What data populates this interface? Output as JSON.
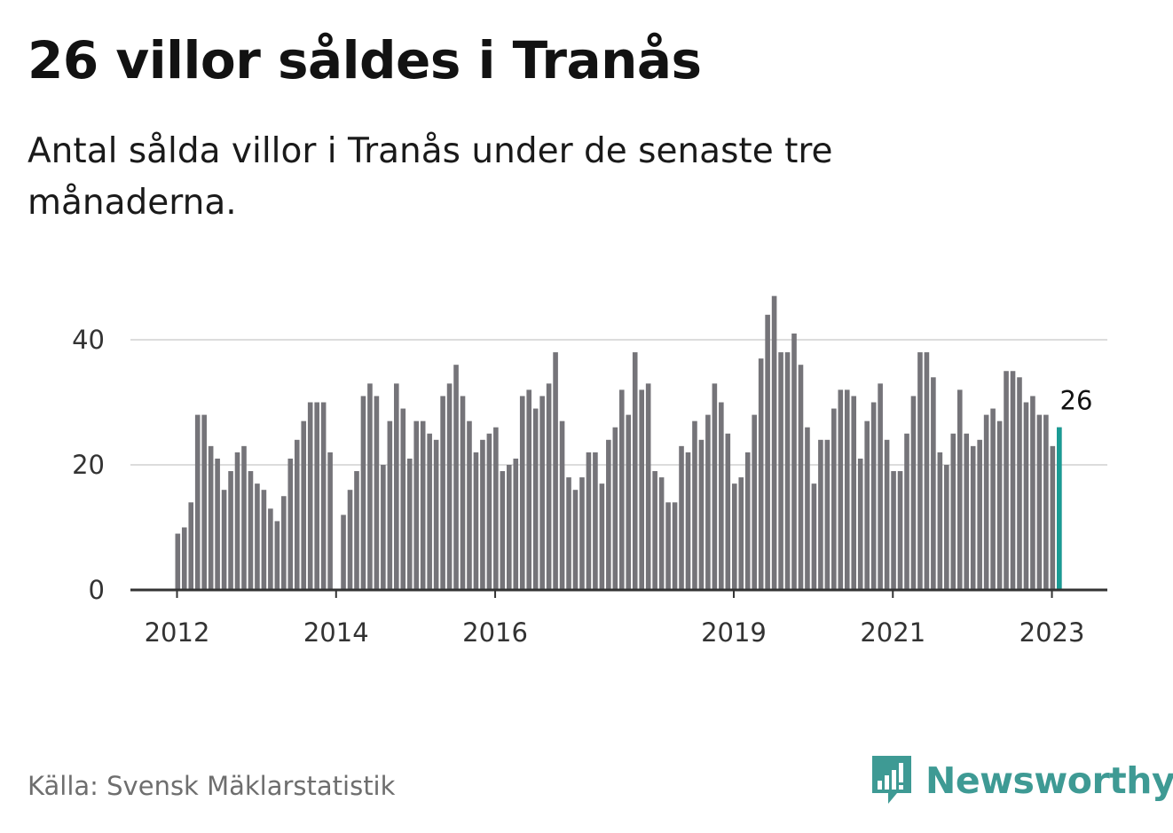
{
  "title": "26 villor såldes i Tranås",
  "subtitle": "Antal sålda villor i Tranås under de senaste tre månaderna.",
  "source": "Källa: Svensk Mäklarstatistik",
  "brand": "Newsworthy",
  "colors": {
    "bar": "#757479",
    "highlight": "#1a9b94",
    "grid": "#dcdcdc",
    "axis": "#333333",
    "brand": "#3e9a94"
  },
  "chart_data": {
    "type": "bar",
    "ylim": [
      0,
      48
    ],
    "yticks": [
      0,
      20,
      40
    ],
    "xticks": [
      {
        "label": "2012",
        "index": 0
      },
      {
        "label": "2014",
        "index": 24
      },
      {
        "label": "2016",
        "index": 48
      },
      {
        "label": "2019",
        "index": 84
      },
      {
        "label": "2021",
        "index": 108
      },
      {
        "label": "2023",
        "index": 132
      }
    ],
    "values": [
      9,
      10,
      14,
      28,
      28,
      23,
      21,
      16,
      19,
      22,
      23,
      19,
      17,
      16,
      13,
      11,
      15,
      21,
      24,
      27,
      30,
      30,
      30,
      22,
      null,
      12,
      16,
      19,
      31,
      33,
      31,
      20,
      27,
      33,
      29,
      21,
      27,
      27,
      25,
      24,
      31,
      33,
      36,
      31,
      27,
      22,
      24,
      25,
      26,
      19,
      20,
      21,
      31,
      32,
      29,
      31,
      33,
      38,
      27,
      18,
      16,
      18,
      22,
      22,
      17,
      24,
      26,
      32,
      28,
      38,
      32,
      33,
      19,
      18,
      14,
      14,
      23,
      22,
      27,
      24,
      28,
      33,
      30,
      25,
      17,
      18,
      22,
      28,
      37,
      44,
      47,
      38,
      38,
      41,
      36,
      26,
      17,
      24,
      24,
      29,
      32,
      32,
      31,
      21,
      27,
      30,
      33,
      24,
      19,
      19,
      25,
      31,
      38,
      38,
      34,
      22,
      20,
      25,
      32,
      25,
      23,
      24,
      28,
      29,
      27,
      35,
      35,
      34,
      30,
      31,
      28,
      28,
      23,
      26
    ],
    "highlight_index": 133,
    "highlight_label": "26"
  }
}
